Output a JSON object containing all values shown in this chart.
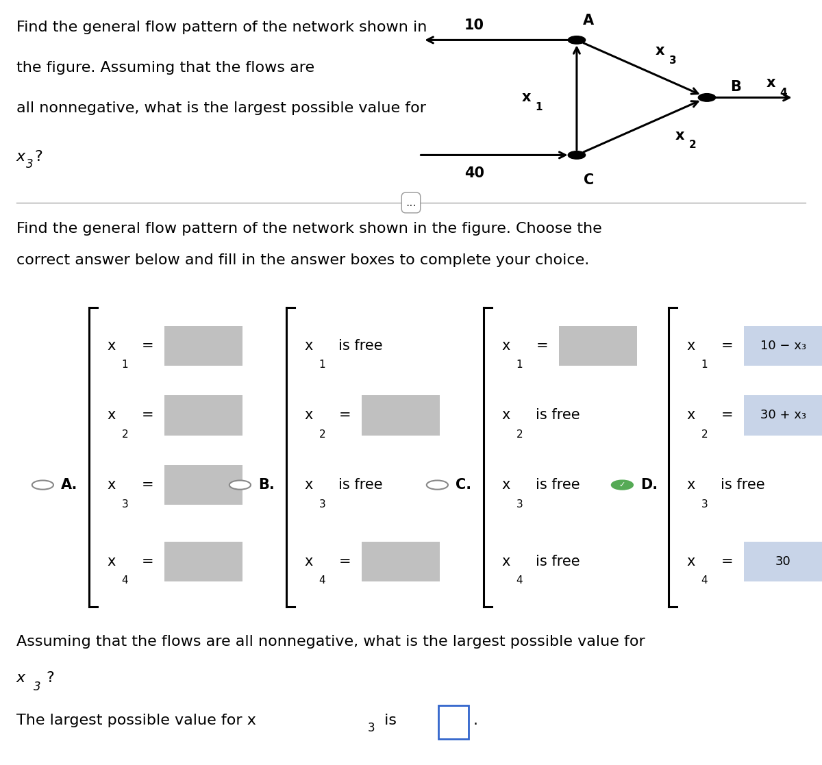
{
  "bg_color": "#ffffff",
  "top_question_lines": [
    "Find the general flow pattern of the network shown in",
    "the figure. Assuming that the flows are",
    "all nonnegative, what is the largest possible value for",
    "x₃?"
  ],
  "separator_dots": "...",
  "second_question_lines": [
    "Find the general flow pattern of the network shown in the figure. Choose the",
    "correct answer below and fill in the answer boxes to complete your choice."
  ],
  "bottom_question_lines": [
    "Assuming that the flows are all nonnegative, what is the largest possible value for",
    "x₃?"
  ],
  "answer_text_parts": [
    "The largest possible value for x",
    "3",
    " is"
  ],
  "box_color_empty": "#c0c0c0",
  "box_color_filled": "#c8d4e8",
  "answer_box_color": "#ffffff",
  "answer_box_border": "#3366cc",
  "choices": [
    {
      "label": "A.",
      "radio_selected": false,
      "lines": [
        {
          "var": "x",
          "sub": "1",
          "free": false,
          "value": ""
        },
        {
          "var": "x",
          "sub": "2",
          "free": false,
          "value": ""
        },
        {
          "var": "x",
          "sub": "3",
          "free": false,
          "value": ""
        },
        {
          "var": "x",
          "sub": "4",
          "free": false,
          "value": ""
        }
      ]
    },
    {
      "label": "B.",
      "radio_selected": false,
      "lines": [
        {
          "var": "x",
          "sub": "1",
          "free": true,
          "value": ""
        },
        {
          "var": "x",
          "sub": "2",
          "free": false,
          "value": ""
        },
        {
          "var": "x",
          "sub": "3",
          "free": true,
          "value": ""
        },
        {
          "var": "x",
          "sub": "4",
          "free": false,
          "value": ""
        }
      ]
    },
    {
      "label": "C.",
      "radio_selected": false,
      "lines": [
        {
          "var": "x",
          "sub": "1",
          "free": false,
          "value": ""
        },
        {
          "var": "x",
          "sub": "2",
          "free": true,
          "value": ""
        },
        {
          "var": "x",
          "sub": "3",
          "free": true,
          "value": ""
        },
        {
          "var": "x",
          "sub": "4",
          "free": true,
          "value": ""
        }
      ]
    },
    {
      "label": "D.",
      "radio_selected": true,
      "lines": [
        {
          "var": "x",
          "sub": "1",
          "free": false,
          "value": "10 − x₃",
          "filled": true
        },
        {
          "var": "x",
          "sub": "2",
          "free": false,
          "value": "30 + x₃",
          "filled": true
        },
        {
          "var": "x",
          "sub": "3",
          "free": true,
          "value": ""
        },
        {
          "var": "x",
          "sub": "4",
          "free": false,
          "value": "30",
          "filled": true
        }
      ]
    }
  ]
}
